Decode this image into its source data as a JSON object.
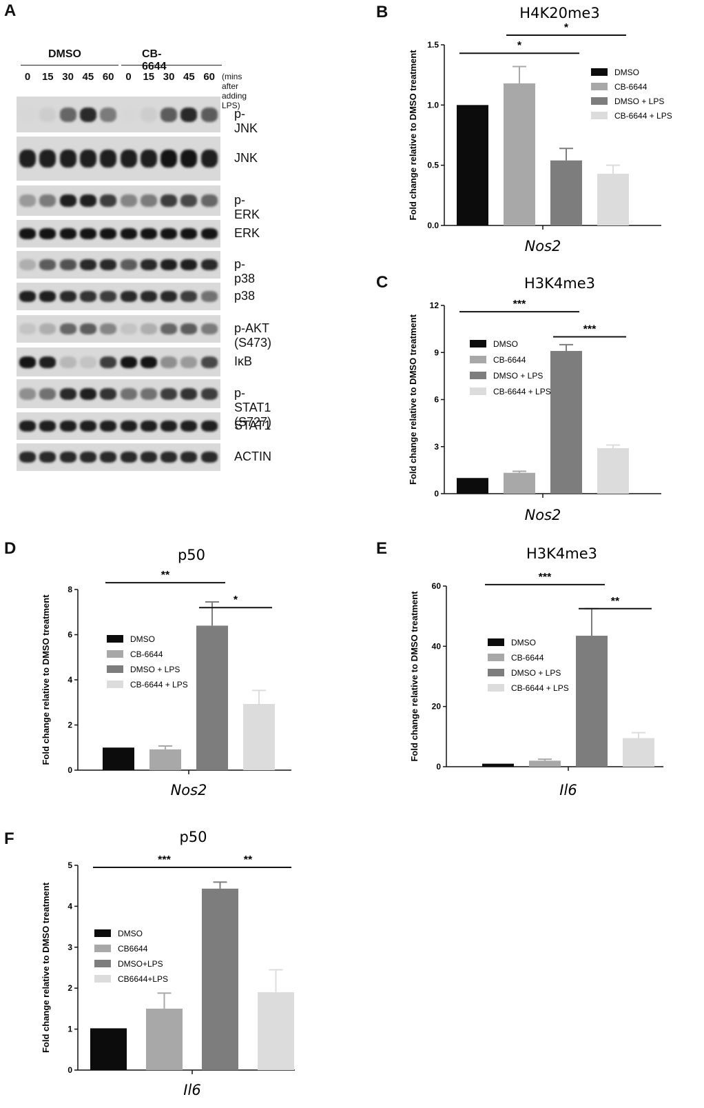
{
  "panel_letters": {
    "a": "A",
    "b": "B",
    "c": "C",
    "d": "D",
    "e": "E",
    "f": "F"
  },
  "blot": {
    "groups": [
      "DMSO",
      "CB-6644"
    ],
    "timepoints": [
      "0",
      "15",
      "30",
      "45",
      "60",
      "0",
      "15",
      "30",
      "45",
      "60"
    ],
    "time_note": "(mins after adding LPS)",
    "rows": [
      {
        "label": "p-JNK",
        "intensity": [
          0.0,
          0.05,
          0.55,
          0.85,
          0.45,
          0.0,
          0.05,
          0.6,
          0.85,
          0.6
        ]
      },
      {
        "label": "JNK",
        "intensity": [
          0.9,
          0.9,
          0.9,
          0.9,
          0.9,
          0.9,
          0.9,
          0.95,
          0.95,
          0.9
        ]
      },
      {
        "label": "p-ERK",
        "intensity": [
          0.3,
          0.45,
          0.9,
          0.9,
          0.75,
          0.4,
          0.45,
          0.75,
          0.7,
          0.55
        ]
      },
      {
        "label": "ERK",
        "intensity": [
          0.95,
          0.95,
          0.95,
          0.95,
          0.95,
          0.95,
          0.95,
          0.95,
          0.95,
          0.95
        ]
      },
      {
        "label": "p-p38",
        "intensity": [
          0.2,
          0.6,
          0.65,
          0.85,
          0.85,
          0.6,
          0.85,
          0.9,
          0.9,
          0.85
        ]
      },
      {
        "label": "p38",
        "intensity": [
          0.9,
          0.9,
          0.85,
          0.8,
          0.75,
          0.85,
          0.85,
          0.85,
          0.75,
          0.5
        ]
      },
      {
        "label": "p-AKT (S473)",
        "intensity": [
          0.1,
          0.2,
          0.55,
          0.6,
          0.4,
          0.1,
          0.2,
          0.55,
          0.6,
          0.45
        ]
      },
      {
        "label": "IκB",
        "intensity": [
          0.95,
          0.9,
          0.15,
          0.1,
          0.75,
          0.95,
          0.95,
          0.35,
          0.3,
          0.7
        ]
      },
      {
        "label": "p-STAT1 (S727)",
        "intensity": [
          0.35,
          0.5,
          0.85,
          0.9,
          0.8,
          0.5,
          0.5,
          0.75,
          0.8,
          0.75
        ]
      },
      {
        "label": "STAT1",
        "intensity": [
          0.9,
          0.9,
          0.9,
          0.9,
          0.9,
          0.9,
          0.9,
          0.9,
          0.9,
          0.9
        ]
      },
      {
        "label": "ACTIN",
        "intensity": [
          0.85,
          0.85,
          0.85,
          0.85,
          0.85,
          0.85,
          0.85,
          0.85,
          0.85,
          0.85
        ]
      }
    ]
  },
  "chart_data": [
    {
      "id": "B",
      "type": "bar",
      "title": "H4K20me3",
      "xlabel": "Nos2",
      "ylabel": "Fold change relative to DMSO treatment",
      "ylim": [
        0,
        1.5
      ],
      "yticks": [
        "0.0",
        "0.5",
        "1.0",
        "1.5"
      ],
      "categories": [
        "DMSO",
        "CB-6644",
        "DMSO + LPS",
        "CB-6644 + LPS"
      ],
      "values": [
        1.0,
        1.18,
        0.54,
        0.43
      ],
      "errors": [
        0,
        0.14,
        0.1,
        0.07
      ],
      "colors": [
        "#0c0c0c",
        "#a8a8a8",
        "#7d7d7d",
        "#dcdcdc"
      ],
      "legend": "top-right",
      "significance": [
        {
          "from": 0,
          "to": 2,
          "label": "*",
          "y": 1.43
        },
        {
          "from": 1,
          "to": 3,
          "label": "*",
          "y": 1.58
        }
      ]
    },
    {
      "id": "C",
      "type": "bar",
      "title": "H3K4me3",
      "xlabel": "Nos2",
      "ylabel": "Fold change relative to DMSO treatment",
      "ylim": [
        0,
        12
      ],
      "yticks": [
        "0",
        "3",
        "6",
        "9",
        "12"
      ],
      "categories": [
        "DMSO",
        "CB-6644",
        "DMSO + LPS",
        "CB-6644 + LPS"
      ],
      "values": [
        1.0,
        1.33,
        9.1,
        2.9
      ],
      "errors": [
        0,
        0.1,
        0.4,
        0.2
      ],
      "colors": [
        "#0c0c0c",
        "#a8a8a8",
        "#7d7d7d",
        "#dcdcdc"
      ],
      "legend": "center-left",
      "significance": [
        {
          "from": 0,
          "to": 2,
          "label": "***",
          "y": 11.6
        },
        {
          "from": 2,
          "to": 3,
          "label": "***",
          "y": 10.0
        }
      ]
    },
    {
      "id": "D",
      "type": "bar",
      "title": "p50",
      "xlabel": "Nos2",
      "ylabel": "Fold change relative to DMSO treatment",
      "ylim": [
        0,
        8
      ],
      "yticks": [
        "0",
        "2",
        "4",
        "6",
        "8"
      ],
      "categories": [
        "DMSO",
        "CB-6644",
        "DMSO + LPS",
        "CB-6644 + LPS"
      ],
      "values": [
        1.0,
        0.92,
        6.4,
        2.93
      ],
      "errors": [
        0,
        0.15,
        1.05,
        0.6
      ],
      "colors": [
        "#0c0c0c",
        "#a8a8a8",
        "#7d7d7d",
        "#dcdcdc"
      ],
      "legend": "center-left",
      "significance": [
        {
          "from": 0,
          "to": 2,
          "label": "**",
          "y": 8.3
        },
        {
          "from": 2,
          "to": 3,
          "label": "*",
          "y": 7.2
        }
      ]
    },
    {
      "id": "E",
      "type": "bar",
      "title": "H3K4me3",
      "xlabel": "Il6",
      "ylabel": "Fold change relative to DMSO treatment",
      "ylim": [
        0,
        60
      ],
      "yticks": [
        "0",
        "20",
        "40",
        "60"
      ],
      "categories": [
        "DMSO",
        "CB-6644",
        "DMSO + LPS",
        "CB-6644 + LPS"
      ],
      "values": [
        1.0,
        2.0,
        43.5,
        9.5
      ],
      "errors": [
        0,
        0.5,
        9.0,
        1.8
      ],
      "colors": [
        "#0c0c0c",
        "#a8a8a8",
        "#7d7d7d",
        "#dcdcdc"
      ],
      "legend": "center-left",
      "significance": [
        {
          "from": 0,
          "to": 2,
          "label": "***",
          "y": 60.5
        },
        {
          "from": 2,
          "to": 3,
          "label": "**",
          "y": 52.5
        }
      ]
    },
    {
      "id": "F",
      "type": "bar",
      "title": "p50",
      "xlabel": "Il6",
      "ylabel": "Fold change relative to DMSO treatment",
      "ylim": [
        0,
        5
      ],
      "yticks": [
        "0",
        "1",
        "2",
        "3",
        "4",
        "5"
      ],
      "categories": [
        "DMSO",
        "CB6644",
        "DMSO+LPS",
        "CB6644+LPS"
      ],
      "values": [
        1.02,
        1.5,
        4.43,
        1.9
      ],
      "errors": [
        0,
        0.38,
        0.16,
        0.55
      ],
      "colors": [
        "#0c0c0c",
        "#a8a8a8",
        "#7d7d7d",
        "#dcdcdc"
      ],
      "legend": "center-left",
      "significance": [
        {
          "from": 0,
          "to": 2,
          "label": "***",
          "y": 4.95
        },
        {
          "from": 2,
          "to": 3,
          "label": "**",
          "y": 4.95
        }
      ]
    }
  ]
}
